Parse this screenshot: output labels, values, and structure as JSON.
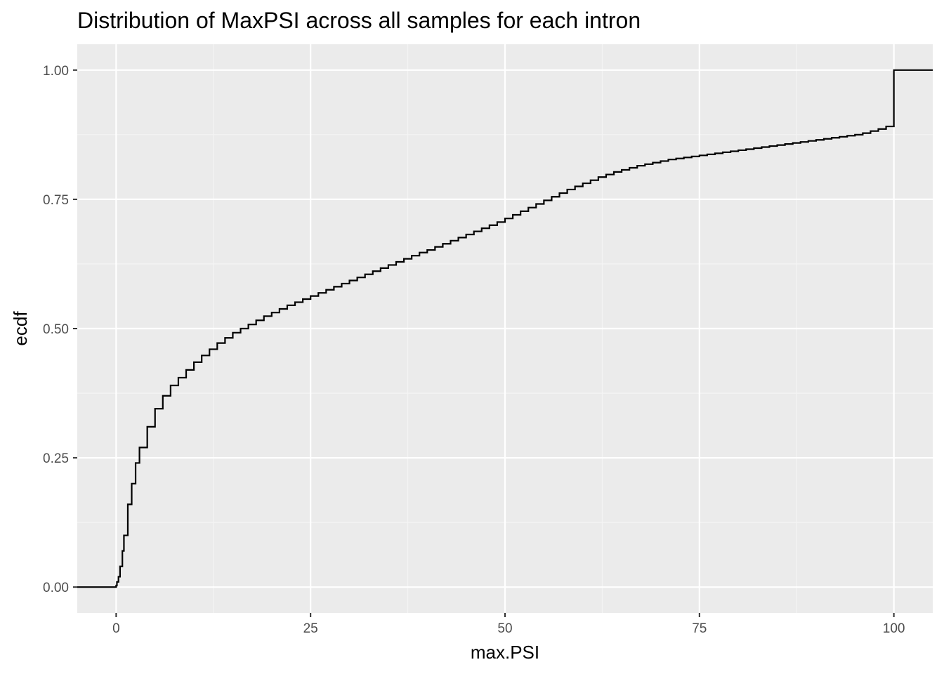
{
  "chart_data": {
    "type": "line",
    "subtype": "ecdf-step",
    "title": "Distribution of MaxPSI across all samples for each intron",
    "xlabel": "max.PSI",
    "ylabel": "ecdf",
    "xlim": [
      -5,
      105
    ],
    "ylim": [
      -0.05,
      1.05
    ],
    "x_ticks": [
      0,
      25,
      50,
      75,
      100
    ],
    "x_tick_labels": [
      "0",
      "25",
      "50",
      "75",
      "100"
    ],
    "y_ticks": [
      0,
      0.25,
      0.5,
      0.75,
      1.0
    ],
    "y_tick_labels": [
      "0.00",
      "0.25",
      "0.50",
      "0.75",
      "1.00"
    ],
    "grid": true,
    "legend": "none",
    "colors": {
      "panel_background": "#ebebeb",
      "grid_major": "#ffffff",
      "grid_minor": "#f5f5f5",
      "line": "#000000",
      "tick_text": "#4d4d4d",
      "axis_text": "#000000"
    },
    "series": [
      {
        "x": [
          -5,
          0,
          0.1,
          0.3,
          0.5,
          0.8,
          1,
          1.5,
          2,
          2.5,
          3,
          4,
          5,
          6,
          7,
          8,
          9,
          10,
          11,
          12,
          13,
          14,
          15,
          16,
          17,
          18,
          19,
          20,
          21,
          22,
          23,
          24,
          25,
          26,
          27,
          28,
          29,
          30,
          31,
          32,
          33,
          34,
          35,
          36,
          37,
          38,
          39,
          40,
          41,
          42,
          43,
          44,
          45,
          46,
          47,
          48,
          49,
          50,
          51,
          52,
          53,
          54,
          55,
          56,
          57,
          58,
          59,
          60,
          61,
          62,
          63,
          64,
          65,
          66,
          67,
          68,
          69,
          70,
          71,
          72,
          73,
          74,
          75,
          76,
          77,
          78,
          79,
          80,
          81,
          82,
          83,
          84,
          85,
          86,
          87,
          88,
          89,
          90,
          91,
          92,
          93,
          94,
          95,
          96,
          97,
          98,
          99,
          100,
          105
        ],
        "y": [
          0,
          0.003,
          0.01,
          0.02,
          0.04,
          0.07,
          0.1,
          0.16,
          0.2,
          0.24,
          0.27,
          0.31,
          0.345,
          0.37,
          0.39,
          0.405,
          0.42,
          0.435,
          0.448,
          0.46,
          0.472,
          0.482,
          0.492,
          0.5,
          0.508,
          0.516,
          0.524,
          0.531,
          0.538,
          0.545,
          0.551,
          0.557,
          0.563,
          0.569,
          0.575,
          0.581,
          0.587,
          0.593,
          0.599,
          0.605,
          0.611,
          0.617,
          0.623,
          0.629,
          0.635,
          0.641,
          0.647,
          0.652,
          0.658,
          0.664,
          0.67,
          0.676,
          0.682,
          0.688,
          0.694,
          0.7,
          0.706,
          0.713,
          0.72,
          0.727,
          0.734,
          0.741,
          0.748,
          0.755,
          0.762,
          0.769,
          0.775,
          0.781,
          0.787,
          0.793,
          0.798,
          0.803,
          0.807,
          0.811,
          0.815,
          0.818,
          0.821,
          0.824,
          0.827,
          0.829,
          0.831,
          0.833,
          0.835,
          0.837,
          0.839,
          0.841,
          0.843,
          0.845,
          0.847,
          0.849,
          0.851,
          0.853,
          0.855,
          0.857,
          0.859,
          0.861,
          0.863,
          0.865,
          0.867,
          0.869,
          0.871,
          0.873,
          0.875,
          0.878,
          0.882,
          0.886,
          0.891,
          1.0,
          1.0
        ]
      }
    ]
  }
}
